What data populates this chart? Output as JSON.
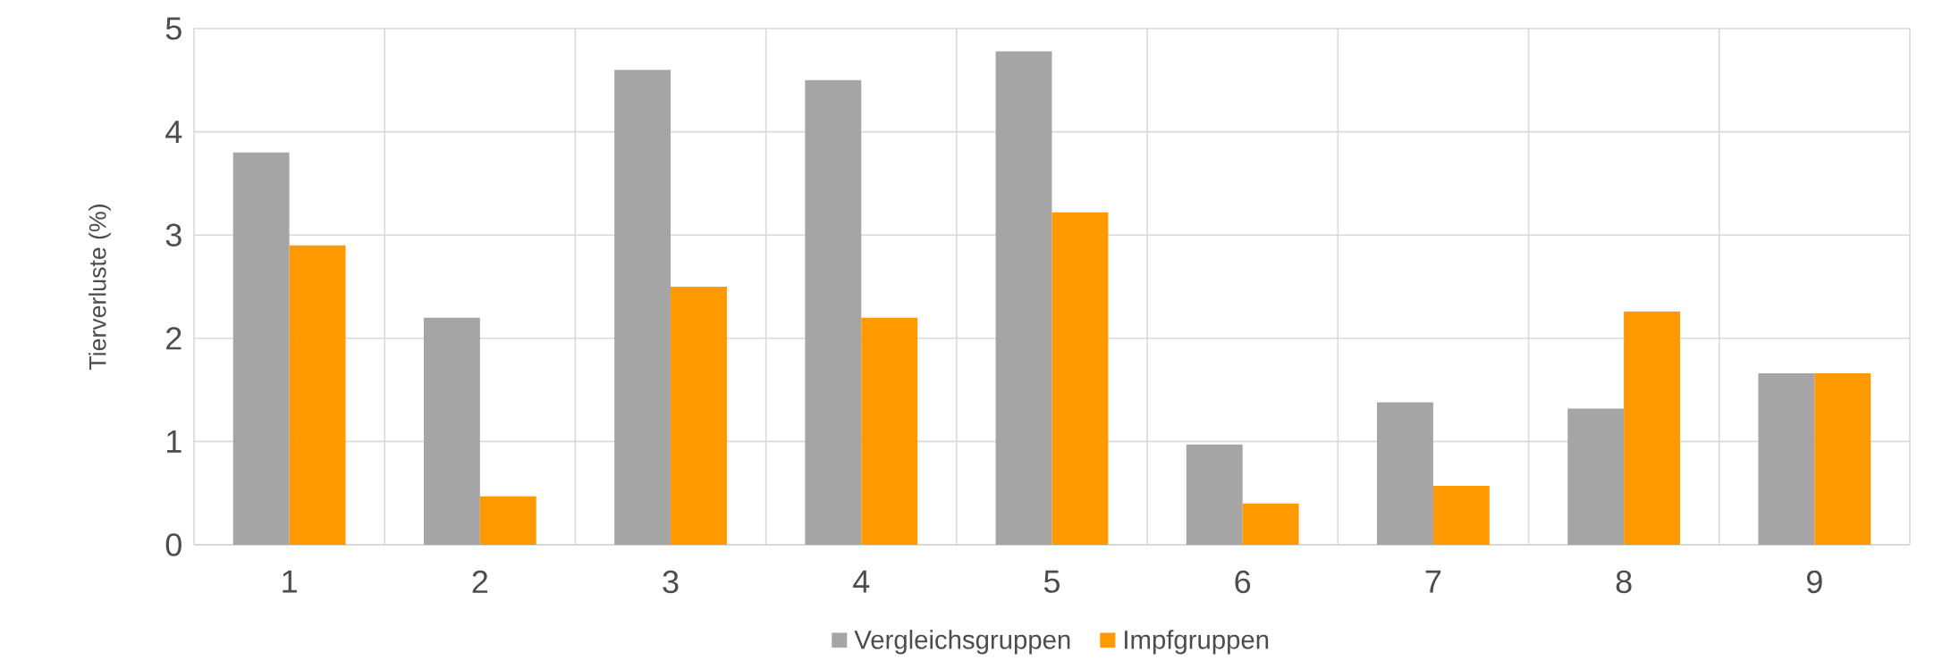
{
  "chart_data": {
    "type": "bar",
    "ylabel": "Tierverluste (%)",
    "categories": [
      "1",
      "2",
      "3",
      "4",
      "5",
      "6",
      "7",
      "8",
      "9"
    ],
    "series": [
      {
        "name": "Vergleichsgruppen",
        "color": "#a5a5a5",
        "values": [
          3.8,
          2.2,
          4.6,
          4.5,
          4.78,
          0.97,
          1.38,
          1.32,
          1.66
        ]
      },
      {
        "name": "Impfgruppen",
        "color": "#ff9900",
        "values": [
          2.9,
          0.47,
          2.5,
          2.2,
          3.22,
          0.4,
          0.57,
          2.26,
          1.66
        ]
      }
    ],
    "ylim": [
      0,
      5
    ],
    "yticks": [
      0,
      1,
      2,
      3,
      4,
      5
    ],
    "grid": true,
    "legend": "bottom"
  }
}
